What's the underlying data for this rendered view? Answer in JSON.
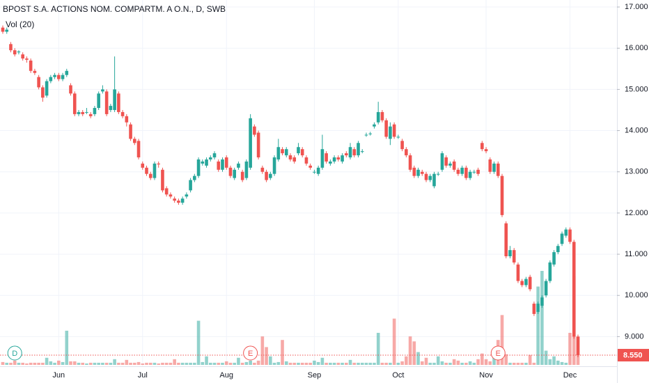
{
  "chart_data": {
    "type": "candlestick",
    "title": "BPOST S.A. ACTIONS NOM. COMPARTM. A O.N., D, SWB",
    "volume_label": "Vol (20)",
    "up_color": "#26a69a",
    "down_color": "#ef5350",
    "categories": [
      null,
      null,
      null,
      null,
      null,
      null,
      null,
      null,
      null,
      null,
      null,
      null,
      null,
      null,
      "Jun",
      null,
      null,
      null,
      null,
      null,
      null,
      null,
      null,
      null,
      null,
      null,
      null,
      null,
      null,
      null,
      null,
      null,
      null,
      null,
      null,
      "Jul",
      null,
      null,
      null,
      null,
      null,
      null,
      null,
      null,
      null,
      null,
      null,
      null,
      null,
      null,
      null,
      null,
      null,
      null,
      null,
      null,
      "Aug",
      null,
      null,
      null,
      null,
      null,
      null,
      null,
      null,
      null,
      null,
      null,
      null,
      null,
      null,
      null,
      null,
      null,
      null,
      null,
      null,
      null,
      "Sep",
      null,
      null,
      null,
      null,
      null,
      null,
      null,
      null,
      null,
      null,
      null,
      null,
      null,
      null,
      null,
      null,
      null,
      null,
      null,
      null,
      "Oct",
      null,
      null,
      null,
      null,
      null,
      null,
      null,
      null,
      null,
      null,
      null,
      null,
      null,
      null,
      null,
      null,
      null,
      null,
      null,
      null,
      null,
      "Nov",
      null,
      null,
      null,
      null,
      null,
      null,
      null,
      null,
      null,
      null,
      null,
      null,
      null,
      null,
      null,
      null,
      null,
      null,
      null,
      null,
      "Dec",
      null,
      null
    ],
    "open": [
      16.5,
      16.4,
      16.1,
      15.95,
      15.9,
      15.85,
      15.75,
      15.7,
      15.45,
      15.3,
      15.05,
      14.85,
      15.2,
      15.3,
      15.35,
      15.25,
      15.35,
      15.1,
      14.9,
      14.4,
      14.45,
      14.45,
      14.4,
      14.4,
      14.55,
      14.95,
      14.95,
      14.5,
      14.5,
      14.9,
      14.45,
      14.35,
      14.15,
      13.8,
      13.75,
      13.2,
      13.1,
      12.95,
      12.85,
      13.2,
      13.05,
      12.6,
      12.45,
      12.35,
      12.3,
      12.25,
      12.4,
      12.55,
      12.8,
      12.9,
      13.2,
      13.15,
      13.3,
      13.35,
      13.25,
      13.05,
      13.35,
      13.1,
      12.85,
      13.1,
      13.0,
      12.85,
      13.1,
      14.1,
      13.95,
      13.1,
      13.0,
      12.85,
      12.95,
      13.3,
      13.55,
      13.4,
      13.4,
      13.35,
      13.45,
      13.55,
      13.35,
      13.15,
      13.0,
      12.95,
      13.1,
      13.45,
      13.2,
      13.25,
      13.35,
      13.25,
      13.45,
      13.35,
      13.55,
      13.4,
      13.5,
      13.9,
      13.92,
      14.1,
      14.2,
      14.45,
      14.25,
      13.8,
      14.15,
      13.85,
      13.75,
      13.55,
      13.4,
      13.1,
      12.9,
      13.0,
      12.95,
      12.8,
      12.65,
      12.95,
      13.05,
      13.35,
      13.15,
      13.25,
      13.05,
      12.95,
      13.1,
      12.85,
      13.0,
      13.05,
      13.7,
      13.55,
      13.3,
      13.0,
      13.2,
      12.9,
      11.75,
      10.95,
      11.1,
      10.75,
      10.35,
      10.25,
      10.45,
      9.8,
      9.6,
      9.75,
      10.0,
      10.35,
      10.75,
      11.05,
      11.25,
      11.45,
      11.6,
      11.3,
      9.0
    ],
    "high": [
      16.55,
      16.5,
      16.15,
      16.0,
      15.95,
      15.9,
      15.8,
      15.75,
      15.5,
      15.35,
      15.1,
      15.25,
      15.35,
      15.4,
      15.4,
      15.4,
      15.5,
      15.15,
      14.95,
      14.5,
      14.5,
      14.55,
      14.45,
      14.6,
      14.95,
      15.1,
      15.0,
      14.65,
      15.8,
      14.95,
      14.5,
      14.4,
      14.2,
      13.85,
      13.8,
      13.25,
      13.15,
      13.0,
      13.25,
      13.25,
      13.1,
      12.65,
      12.5,
      12.4,
      12.35,
      12.4,
      12.5,
      12.85,
      12.95,
      13.35,
      13.3,
      13.35,
      13.4,
      13.5,
      13.3,
      13.35,
      13.4,
      13.15,
      13.1,
      13.25,
      13.05,
      13.3,
      14.4,
      14.15,
      14.0,
      13.15,
      13.05,
      13.0,
      13.4,
      13.8,
      13.6,
      13.6,
      13.45,
      13.4,
      13.7,
      13.6,
      13.4,
      13.2,
      13.05,
      13.15,
      13.9,
      13.5,
      13.3,
      13.4,
      13.4,
      13.45,
      13.5,
      13.7,
      13.6,
      13.75,
      13.55,
      13.95,
      13.97,
      14.2,
      14.7,
      14.5,
      14.3,
      14.2,
      14.2,
      13.9,
      13.8,
      13.6,
      13.45,
      13.15,
      13.1,
      13.05,
      13.0,
      12.95,
      13.0,
      13.0,
      13.5,
      13.4,
      13.25,
      13.3,
      13.1,
      13.15,
      13.15,
      13.05,
      13.05,
      13.1,
      13.75,
      13.6,
      13.35,
      13.25,
      13.25,
      12.95,
      11.8,
      11.2,
      11.15,
      10.8,
      10.4,
      10.45,
      10.5,
      9.85,
      9.85,
      10.0,
      10.4,
      10.85,
      11.1,
      11.25,
      11.55,
      11.65,
      11.65,
      11.35,
      9.05
    ],
    "low": [
      16.35,
      16.35,
      15.9,
      15.8,
      15.85,
      15.7,
      15.65,
      15.4,
      15.35,
      15.0,
      14.7,
      14.8,
      15.15,
      15.25,
      15.2,
      15.2,
      15.3,
      14.85,
      14.35,
      14.35,
      14.35,
      14.4,
      14.3,
      14.35,
      14.5,
      14.9,
      14.35,
      14.45,
      14.45,
      14.4,
      14.3,
      14.1,
      13.75,
      13.65,
      13.3,
      13.05,
      12.9,
      12.8,
      12.8,
      13.1,
      12.5,
      12.4,
      12.35,
      12.25,
      12.2,
      12.2,
      12.35,
      12.5,
      12.75,
      12.85,
      13.15,
      13.1,
      13.25,
      13.3,
      13.0,
      13.0,
      13.05,
      12.85,
      12.8,
      13.05,
      12.75,
      12.8,
      13.05,
      13.85,
      13.3,
      12.95,
      12.75,
      12.8,
      12.9,
      13.25,
      13.4,
      13.35,
      13.25,
      13.2,
      13.4,
      13.35,
      13.15,
      13.05,
      12.95,
      12.9,
      13.05,
      13.2,
      13.15,
      13.2,
      13.25,
      13.2,
      13.35,
      13.3,
      13.35,
      13.35,
      13.45,
      13.85,
      13.88,
      14.05,
      14.15,
      14.2,
      13.8,
      13.65,
      13.8,
      13.8,
      13.5,
      13.35,
      13.0,
      12.85,
      12.85,
      12.9,
      12.75,
      12.75,
      12.6,
      12.9,
      13.0,
      13.1,
      13.1,
      13.0,
      12.9,
      12.9,
      12.8,
      12.8,
      12.95,
      12.9,
      13.5,
      13.45,
      12.95,
      12.95,
      12.85,
      11.9,
      10.9,
      10.9,
      10.75,
      10.3,
      10.2,
      10.2,
      10.1,
      9.5,
      9.55,
      9.7,
      9.95,
      10.3,
      10.7,
      11.0,
      11.2,
      11.4,
      11.25,
      8.95,
      8.5
    ],
    "close": [
      16.4,
      16.45,
      15.95,
      15.85,
      15.92,
      15.75,
      15.72,
      15.45,
      15.4,
      15.05,
      14.8,
      15.2,
      15.3,
      15.35,
      15.25,
      15.35,
      15.45,
      14.9,
      14.4,
      14.45,
      14.4,
      14.45,
      14.35,
      14.55,
      14.9,
      15.0,
      14.4,
      14.6,
      15.0,
      14.45,
      14.35,
      14.2,
      13.8,
      13.7,
      13.35,
      13.1,
      12.95,
      12.85,
      13.2,
      13.18,
      12.55,
      12.45,
      12.4,
      12.3,
      12.25,
      12.35,
      12.45,
      12.8,
      12.9,
      13.3,
      13.25,
      13.3,
      13.35,
      13.45,
      13.05,
      13.3,
      13.1,
      12.9,
      13.05,
      13.2,
      12.8,
      13.25,
      14.3,
      13.9,
      13.35,
      13.0,
      12.8,
      12.95,
      13.35,
      13.6,
      13.45,
      13.55,
      13.3,
      13.25,
      13.6,
      13.4,
      13.2,
      13.1,
      13.0,
      13.1,
      13.55,
      13.25,
      13.25,
      13.35,
      13.3,
      13.4,
      13.4,
      13.6,
      13.4,
      13.7,
      13.5,
      13.9,
      13.93,
      14.15,
      14.45,
      14.25,
      13.85,
      14.1,
      13.85,
      13.85,
      13.55,
      13.4,
      13.05,
      12.9,
      13.05,
      12.95,
      12.8,
      12.9,
      12.95,
      12.95,
      13.45,
      13.15,
      13.2,
      13.05,
      12.95,
      13.1,
      12.85,
      13.0,
      13.0,
      12.95,
      13.55,
      13.5,
      13.0,
      13.2,
      12.9,
      11.95,
      10.95,
      11.1,
      10.8,
      10.35,
      10.25,
      10.4,
      10.15,
      9.55,
      9.8,
      9.95,
      10.35,
      10.8,
      11.05,
      11.2,
      11.5,
      11.6,
      11.3,
      9.0,
      8.55
    ],
    "volume": [
      4,
      3,
      3,
      6,
      3,
      3,
      2,
      3,
      3,
      3,
      3,
      10,
      5,
      3,
      6,
      4,
      48,
      5,
      5,
      3,
      3,
      2,
      3,
      3,
      3,
      3,
      3,
      3,
      8,
      3,
      3,
      7,
      3,
      3,
      4,
      2,
      3,
      3,
      3,
      2,
      3,
      3,
      3,
      8,
      3,
      3,
      3,
      3,
      3,
      62,
      4,
      12,
      3,
      3,
      3,
      3,
      5,
      3,
      3,
      10,
      3,
      4,
      6,
      3,
      6,
      40,
      25,
      12,
      3,
      4,
      35,
      5,
      3,
      3,
      3,
      3,
      3,
      3,
      6,
      4,
      10,
      3,
      3,
      3,
      3,
      3,
      3,
      7,
      3,
      3,
      3,
      3,
      3,
      3,
      45,
      3,
      3,
      3,
      65,
      3,
      5,
      12,
      40,
      33,
      18,
      5,
      10,
      3,
      3,
      12,
      5,
      3,
      3,
      8,
      6,
      3,
      3,
      5,
      3,
      8,
      16,
      8,
      5,
      18,
      35,
      70,
      15,
      3,
      3,
      3,
      3,
      3,
      14,
      3,
      110,
      132,
      20,
      8,
      12,
      6,
      4,
      3,
      45,
      125,
      40
    ],
    "ylim": [
      8.28,
      17.17
    ],
    "yticks": [
      {
        "value": 9,
        "label": "9.000"
      },
      {
        "value": 10,
        "label": "10.000"
      },
      {
        "value": 11,
        "label": "11.000"
      },
      {
        "value": 12,
        "label": "12.000"
      },
      {
        "value": 13,
        "label": "13.000"
      },
      {
        "value": 14,
        "label": "14.000"
      },
      {
        "value": 15,
        "label": "15.000"
      },
      {
        "value": 16,
        "label": "16.000"
      },
      {
        "value": 17,
        "label": "17.000"
      }
    ],
    "last_price": {
      "value": 8.55,
      "label": "8.550"
    },
    "events": [
      {
        "label": "D",
        "index": 3,
        "color": "#26a69a"
      },
      {
        "label": "E",
        "index": 62,
        "color": "#ef5350"
      },
      {
        "label": "E",
        "index": 124,
        "color": "#ef5350"
      }
    ],
    "grid": true
  }
}
